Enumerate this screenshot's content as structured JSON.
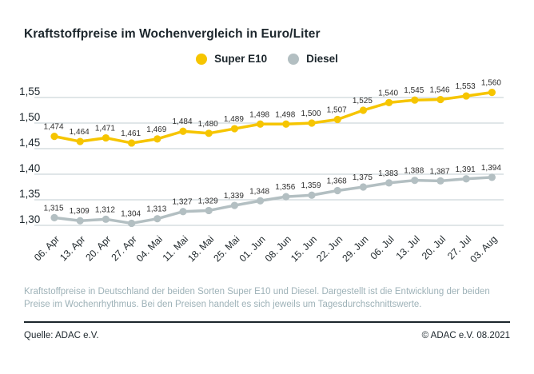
{
  "page": {
    "title": "Kraftstoffpreise im Wochenvergleich in Euro/Liter",
    "footnote": "Kraftstoffpreise in Deutschland der beiden Sorten Super E10 und Diesel. Dargestellt ist die Entwicklung der beiden Preise im Wochenrhythmus. Bei den Preisen handelt es sich jeweils um Tagesdurchschnittswerte.",
    "source": "Quelle: ADAC e.V.",
    "copyright": "© ADAC e.V. 08.2021"
  },
  "colors": {
    "super_e10": "#F6C500",
    "diesel": "#B3BFC2",
    "grid": "#CDD7D9",
    "text_dark": "#1C262C",
    "value_label": "#2E2E2E",
    "muted": "#9EB2B8"
  },
  "chart_data": {
    "type": "line",
    "title": "Kraftstoffpreise im Wochenvergleich in Euro/Liter",
    "unit": "Euro/Liter",
    "categories": [
      "06. Apr",
      "13. Apr",
      "20. Apr",
      "27. Apr",
      "04. Mai",
      "11. Mai",
      "18. Mai",
      "25. Mai",
      "01. Jun",
      "08. Jun",
      "15. Jun",
      "22. Jun",
      "29. Jun",
      "06. Jul",
      "13. Jul",
      "20. Jul",
      "27. Jul",
      "03. Aug"
    ],
    "series": [
      {
        "name": "Super E10",
        "color": "#F6C500",
        "values": [
          1.474,
          1.464,
          1.471,
          1.461,
          1.469,
          1.484,
          1.48,
          1.489,
          1.498,
          1.498,
          1.5,
          1.507,
          1.525,
          1.54,
          1.545,
          1.546,
          1.553,
          1.56
        ]
      },
      {
        "name": "Diesel",
        "color": "#B3BFC2",
        "values": [
          1.315,
          1.309,
          1.312,
          1.304,
          1.313,
          1.327,
          1.329,
          1.339,
          1.348,
          1.356,
          1.359,
          1.368,
          1.375,
          1.383,
          1.388,
          1.387,
          1.391,
          1.394
        ]
      }
    ],
    "y_ticks": [
      1.55,
      1.5,
      1.45,
      1.4,
      1.35,
      1.3
    ],
    "ylim": [
      1.29,
      1.57
    ],
    "grid": true,
    "legend_position": "top",
    "decimal_separator": ",",
    "value_labels": true
  }
}
